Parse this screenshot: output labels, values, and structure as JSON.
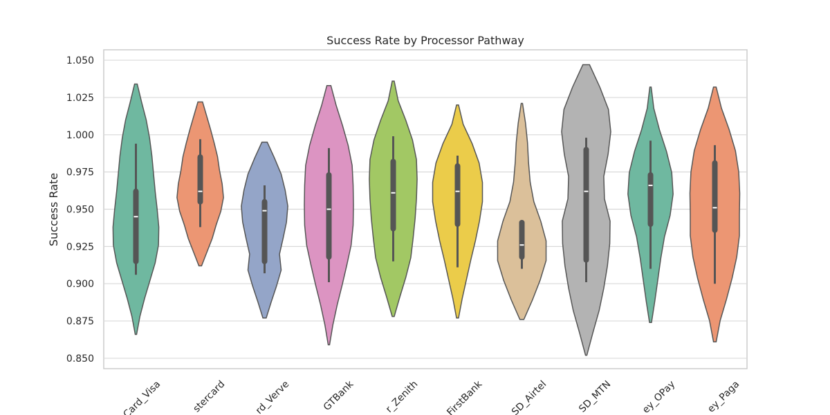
{
  "chart_data": {
    "type": "violin",
    "title": "Success Rate by Processor Pathway",
    "xlabel": "",
    "ylabel": "Success Rate",
    "ylim": [
      0.843,
      1.057
    ],
    "yticks": [
      0.85,
      0.875,
      0.9,
      0.925,
      0.95,
      0.975,
      1.0,
      1.025,
      1.05
    ],
    "ytick_labels": [
      "0.850",
      "0.875",
      "0.900",
      "0.925",
      "0.950",
      "0.975",
      "1.000",
      "1.025",
      "1.050"
    ],
    "grid": true,
    "categories": [
      "Card_Visa",
      "Card_Mastercard",
      "Card_Verve",
      "Transfer_GTBank",
      "Transfer_Zenith",
      "Transfer_FirstBank",
      "USSD_Airtel",
      "USSD_MTN",
      "Money_OPay",
      "Money_Paga"
    ],
    "category_tick_labels": [
      "Card_Visa",
      "stercard",
      "rd_Verve",
      "GTBank",
      "r_Zenith",
      "FirstBank",
      "SD_Airtel",
      "SD_MTN",
      "ey_OPay",
      "ey_Paga"
    ],
    "colors": [
      "#6fb8a0",
      "#ec9673",
      "#94a5c8",
      "#dc94c2",
      "#a2c864",
      "#ebcc4a",
      "#dbc09a",
      "#b3b3b3",
      "#6fb8a0",
      "#ec9673"
    ],
    "series": [
      {
        "name": "Card_Visa",
        "min": 0.866,
        "max": 1.034,
        "whisker_low": 0.906,
        "q1": 0.915,
        "median": 0.945,
        "q3": 0.962,
        "whisker_high": 0.994,
        "density": [
          0.02,
          0.12,
          0.26,
          0.42,
          0.58,
          0.68,
          0.69,
          0.64,
          0.58,
          0.53,
          0.48,
          0.41,
          0.31,
          0.17,
          0.04
        ]
      },
      {
        "name": "Card_Mastercard",
        "min": 0.912,
        "max": 1.022,
        "whisker_low": 0.938,
        "q1": 0.955,
        "median": 0.962,
        "q3": 0.985,
        "whisker_high": 0.997,
        "density": [
          0.04,
          0.2,
          0.36,
          0.48,
          0.62,
          0.7,
          0.66,
          0.58,
          0.52,
          0.42,
          0.31,
          0.19,
          0.07
        ]
      },
      {
        "name": "Card_Verve",
        "min": 0.877,
        "max": 0.995,
        "whisker_low": 0.907,
        "q1": 0.915,
        "median": 0.949,
        "q3": 0.955,
        "whisker_high": 0.966,
        "density": [
          0.05,
          0.2,
          0.36,
          0.5,
          0.45,
          0.56,
          0.66,
          0.7,
          0.62,
          0.5,
          0.3,
          0.08
        ]
      },
      {
        "name": "Transfer_GTBank",
        "min": 0.859,
        "max": 1.033,
        "whisker_low": 0.901,
        "q1": 0.918,
        "median": 0.95,
        "q3": 0.973,
        "whisker_high": 0.991,
        "density": [
          0.02,
          0.12,
          0.25,
          0.4,
          0.54,
          0.67,
          0.73,
          0.74,
          0.73,
          0.7,
          0.58,
          0.41,
          0.22,
          0.06
        ]
      },
      {
        "name": "Transfer_Zenith",
        "min": 0.878,
        "max": 1.036,
        "whisker_low": 0.915,
        "q1": 0.937,
        "median": 0.961,
        "q3": 0.982,
        "whisker_high": 0.999,
        "density": [
          0.03,
          0.2,
          0.38,
          0.53,
          0.6,
          0.66,
          0.7,
          0.72,
          0.7,
          0.58,
          0.38,
          0.15,
          0.03
        ]
      },
      {
        "name": "Transfer_FirstBank",
        "min": 0.877,
        "max": 1.02,
        "whisker_low": 0.911,
        "q1": 0.94,
        "median": 0.962,
        "q3": 0.979,
        "whisker_high": 0.986,
        "density": [
          0.03,
          0.14,
          0.27,
          0.4,
          0.54,
          0.66,
          0.75,
          0.75,
          0.65,
          0.44,
          0.17,
          0.03
        ]
      },
      {
        "name": "USSD_Airtel",
        "min": 0.876,
        "max": 1.021,
        "whisker_low": 0.91,
        "q1": 0.918,
        "median": 0.926,
        "q3": 0.941,
        "whisker_high": 0.942,
        "density": [
          0.06,
          0.32,
          0.55,
          0.73,
          0.73,
          0.57,
          0.36,
          0.25,
          0.2,
          0.17,
          0.11,
          0.02
        ]
      },
      {
        "name": "USSD_MTN",
        "min": 0.852,
        "max": 1.047,
        "whisker_low": 0.901,
        "q1": 0.916,
        "median": 0.962,
        "q3": 0.99,
        "whisker_high": 0.998,
        "density": [
          0.02,
          0.2,
          0.39,
          0.53,
          0.64,
          0.71,
          0.72,
          0.55,
          0.53,
          0.66,
          0.74,
          0.67,
          0.41,
          0.1
        ]
      },
      {
        "name": "Money_OPay",
        "min": 0.874,
        "max": 1.032,
        "whisker_low": 0.91,
        "q1": 0.94,
        "median": 0.966,
        "q3": 0.973,
        "whisker_high": 0.996,
        "density": [
          0.03,
          0.13,
          0.22,
          0.31,
          0.42,
          0.59,
          0.68,
          0.64,
          0.48,
          0.27,
          0.1,
          0.02
        ]
      },
      {
        "name": "Money_Paga",
        "min": 0.861,
        "max": 1.032,
        "whisker_low": 0.9,
        "q1": 0.936,
        "median": 0.951,
        "q3": 0.981,
        "whisker_high": 0.993,
        "density": [
          0.04,
          0.16,
          0.35,
          0.52,
          0.66,
          0.74,
          0.74,
          0.75,
          0.72,
          0.62,
          0.43,
          0.2,
          0.04
        ]
      }
    ]
  }
}
